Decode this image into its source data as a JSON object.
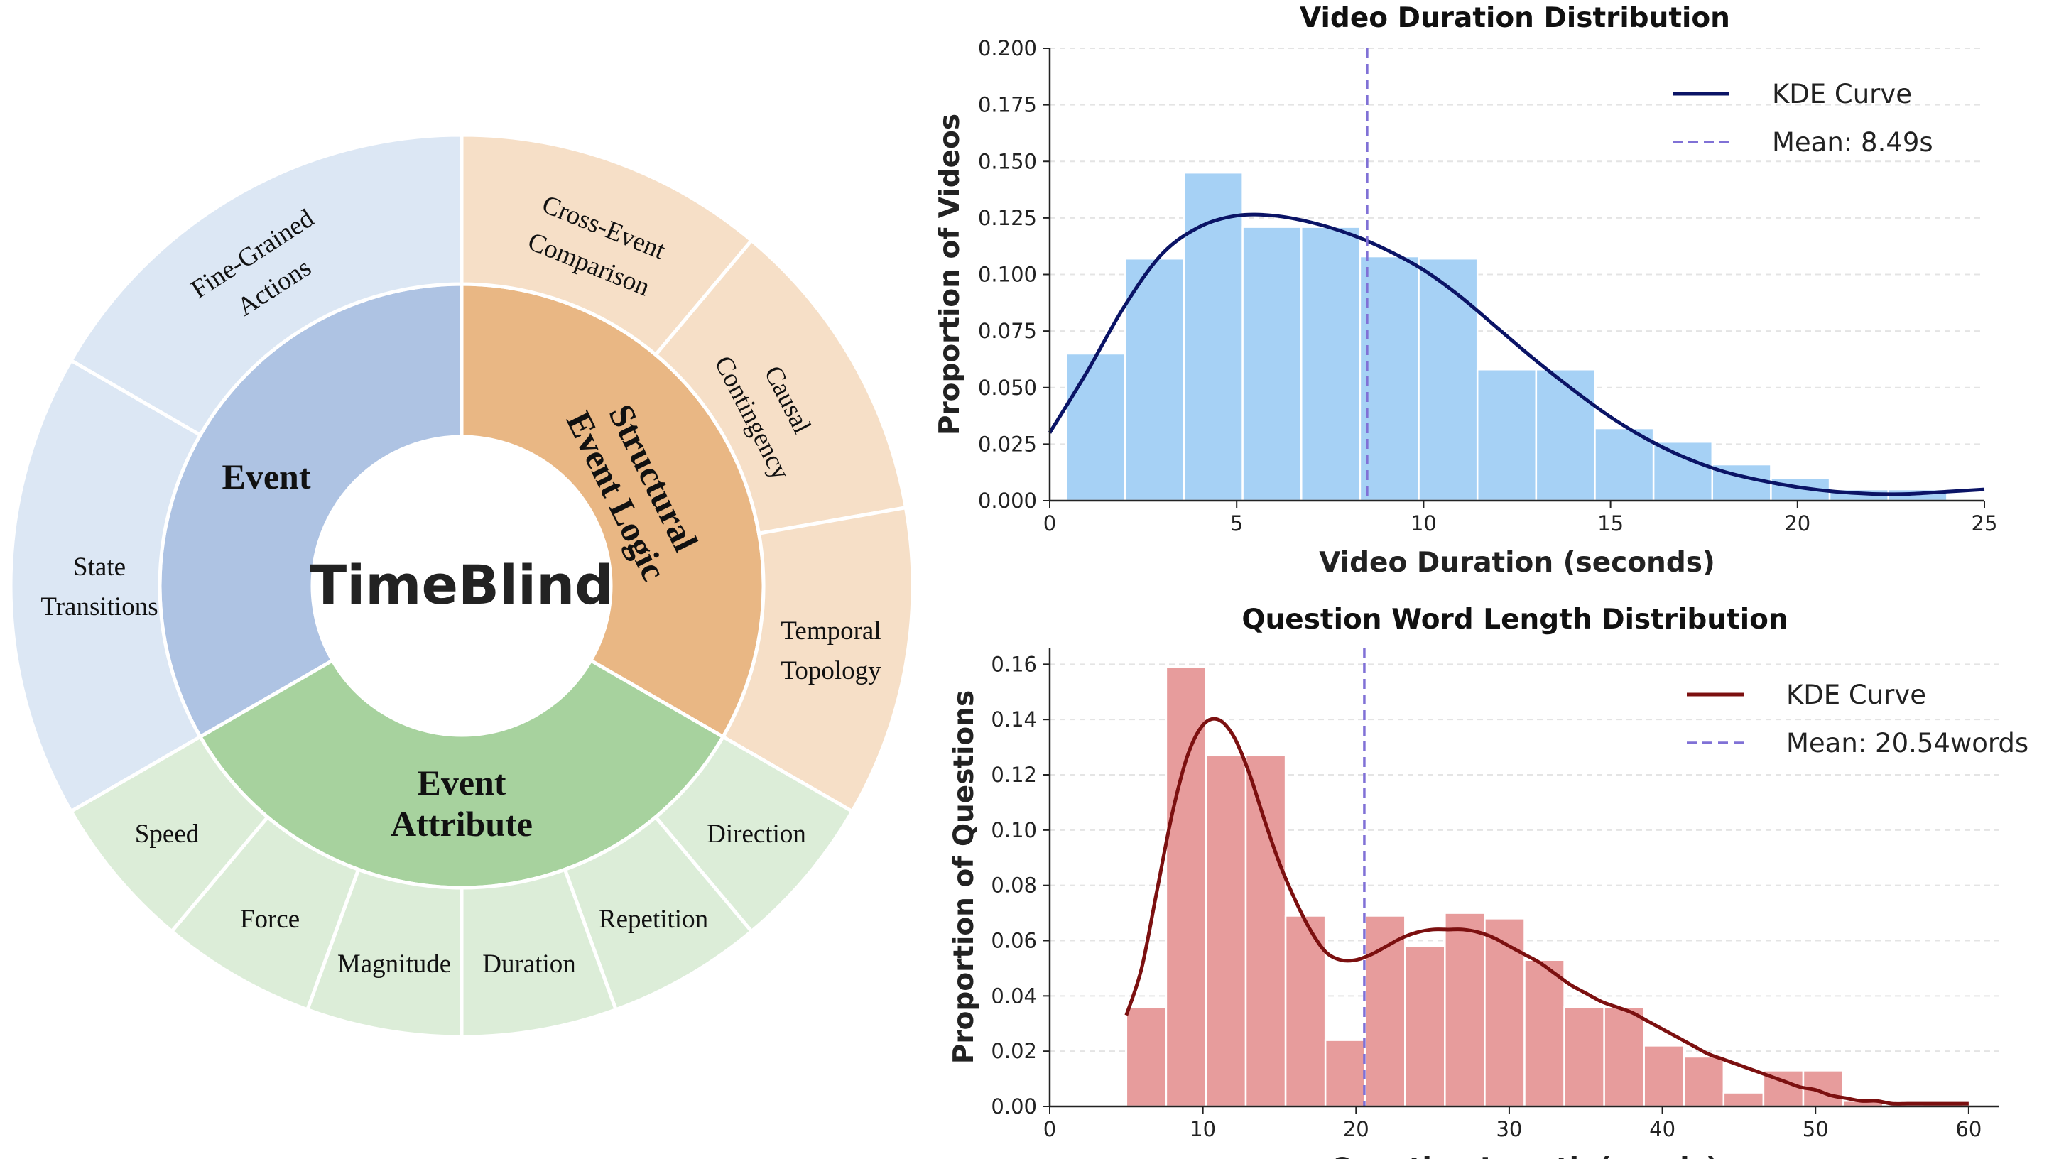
{
  "sunburst": {
    "center_label": "TimeBlind",
    "categories": [
      {
        "name": "Event",
        "color": "#aec3e3",
        "light_color": "#dce7f4",
        "subcategories": [
          {
            "lines": [
              "State",
              "Transitions"
            ]
          },
          {
            "lines": [
              "Fine-Grained",
              "Actions"
            ]
          }
        ]
      },
      {
        "name": "Structural Event Logic",
        "lines": [
          "Structural",
          "Event Logic"
        ],
        "color": "#e9b784",
        "light_color": "#f6dfc7",
        "subcategories": [
          {
            "lines": [
              "Cross-Event",
              "Comparison"
            ]
          },
          {
            "lines": [
              "Causal",
              "Contingency"
            ]
          },
          {
            "lines": [
              "Temporal",
              "Topology"
            ]
          }
        ]
      },
      {
        "name": "Event Attribute",
        "lines": [
          "Event",
          "Attribute"
        ],
        "color": "#a7d29e",
        "light_color": "#dcedd8",
        "subcategories": [
          {
            "lines": [
              "Direction"
            ]
          },
          {
            "lines": [
              "Repetition"
            ]
          },
          {
            "lines": [
              "Duration"
            ]
          },
          {
            "lines": [
              "Magnitude"
            ]
          },
          {
            "lines": [
              "Force"
            ]
          },
          {
            "lines": [
              "Speed"
            ]
          }
        ]
      }
    ]
  },
  "chart_data": [
    {
      "type": "bar",
      "title": "Video Duration Distribution",
      "xlabel": "Video Duration (seconds)",
      "ylabel": "Proportion of Videos",
      "xlim": [
        0,
        25
      ],
      "ylim": [
        0,
        0.2
      ],
      "xticks": [
        0,
        5,
        10,
        15,
        20,
        25
      ],
      "xtick_labels": [
        "0",
        "5",
        "10",
        "15",
        "20",
        "25"
      ],
      "yticks": [
        0,
        0.025,
        0.05,
        0.075,
        0.1,
        0.125,
        0.15,
        0.175,
        0.2
      ],
      "ytick_labels": [
        "0.000",
        "0.025",
        "0.050",
        "0.075",
        "0.100",
        "0.125",
        "0.150",
        "0.175",
        "0.200"
      ],
      "bar_color": "#a6d1f5",
      "kde_color": "#0b1466",
      "mean_color": "#8071d6",
      "bins": [
        {
          "x0": 0.45,
          "x1": 2.02,
          "value": 0.065
        },
        {
          "x0": 2.02,
          "x1": 3.59,
          "value": 0.107
        },
        {
          "x0": 3.59,
          "x1": 5.16,
          "value": 0.145
        },
        {
          "x0": 5.16,
          "x1": 6.73,
          "value": 0.121
        },
        {
          "x0": 6.73,
          "x1": 8.3,
          "value": 0.121
        },
        {
          "x0": 8.3,
          "x1": 9.87,
          "value": 0.108
        },
        {
          "x0": 9.87,
          "x1": 11.44,
          "value": 0.107
        },
        {
          "x0": 11.44,
          "x1": 13.01,
          "value": 0.058
        },
        {
          "x0": 13.01,
          "x1": 14.58,
          "value": 0.058
        },
        {
          "x0": 14.58,
          "x1": 16.15,
          "value": 0.032
        },
        {
          "x0": 16.15,
          "x1": 17.72,
          "value": 0.026
        },
        {
          "x0": 17.72,
          "x1": 19.29,
          "value": 0.016
        },
        {
          "x0": 19.29,
          "x1": 20.86,
          "value": 0.01
        },
        {
          "x0": 20.86,
          "x1": 22.43,
          "value": 0.005
        },
        {
          "x0": 22.43,
          "x1": 24.0,
          "value": 0.005
        }
      ],
      "kde": {
        "x": [
          0,
          1,
          2,
          3,
          4,
          5,
          6,
          7,
          8,
          9,
          10,
          11,
          12,
          13,
          14,
          15,
          16,
          17,
          18,
          19,
          20,
          21,
          22,
          23,
          24,
          25
        ],
        "y": [
          0.03,
          0.057,
          0.086,
          0.109,
          0.121,
          0.126,
          0.126,
          0.123,
          0.118,
          0.111,
          0.102,
          0.09,
          0.076,
          0.062,
          0.049,
          0.037,
          0.027,
          0.019,
          0.013,
          0.009,
          0.006,
          0.004,
          0.003,
          0.003,
          0.004,
          0.005
        ]
      },
      "mean": 8.49,
      "legend": {
        "position": "top-right",
        "kde_label": "KDE Curve",
        "mean_label": "Mean: 8.49s"
      }
    },
    {
      "type": "bar",
      "title": "Question Word Length Distribution",
      "xlabel": "Question Length (words)",
      "ylabel": "Proportion of Questions",
      "xlim": [
        0,
        62
      ],
      "ylim": [
        0,
        0.166
      ],
      "xticks": [
        0,
        10,
        20,
        30,
        40,
        50,
        60
      ],
      "xtick_labels": [
        "0",
        "10",
        "20",
        "30",
        "40",
        "50",
        "60"
      ],
      "yticks": [
        0,
        0.02,
        0.04,
        0.06,
        0.08,
        0.1,
        0.12,
        0.14,
        0.16
      ],
      "ytick_labels": [
        "0.00",
        "0.02",
        "0.04",
        "0.06",
        "0.08",
        "0.10",
        "0.12",
        "0.14",
        "0.16"
      ],
      "bar_color": "#e79c9c",
      "kde_color": "#7c1010",
      "mean_color": "#8071d6",
      "bins": [
        {
          "x0": 5.0,
          "x1": 7.6,
          "value": 0.036
        },
        {
          "x0": 7.6,
          "x1": 10.2,
          "value": 0.159
        },
        {
          "x0": 10.2,
          "x1": 12.8,
          "value": 0.127
        },
        {
          "x0": 12.8,
          "x1": 15.4,
          "value": 0.127
        },
        {
          "x0": 15.4,
          "x1": 18.0,
          "value": 0.069
        },
        {
          "x0": 18.0,
          "x1": 20.6,
          "value": 0.024
        },
        {
          "x0": 20.6,
          "x1": 23.2,
          "value": 0.069
        },
        {
          "x0": 23.2,
          "x1": 25.8,
          "value": 0.058
        },
        {
          "x0": 25.8,
          "x1": 28.4,
          "value": 0.07
        },
        {
          "x0": 28.4,
          "x1": 31.0,
          "value": 0.068
        },
        {
          "x0": 31.0,
          "x1": 33.6,
          "value": 0.053
        },
        {
          "x0": 33.6,
          "x1": 36.2,
          "value": 0.036
        },
        {
          "x0": 36.2,
          "x1": 38.8,
          "value": 0.036
        },
        {
          "x0": 38.8,
          "x1": 41.4,
          "value": 0.022
        },
        {
          "x0": 41.4,
          "x1": 44.0,
          "value": 0.018
        },
        {
          "x0": 44.0,
          "x1": 46.6,
          "value": 0.005
        },
        {
          "x0": 46.6,
          "x1": 49.2,
          "value": 0.013
        },
        {
          "x0": 49.2,
          "x1": 51.8,
          "value": 0.013
        },
        {
          "x0": 51.8,
          "x1": 54.4,
          "value": 0.002
        },
        {
          "x0": 54.4,
          "x1": 57.0,
          "value": 0.0
        },
        {
          "x0": 57.0,
          "x1": 59.6,
          "value": 0.001
        }
      ],
      "kde": {
        "x": [
          5,
          6,
          7,
          8,
          9,
          10,
          11,
          12,
          13,
          14,
          15,
          16,
          17,
          18,
          19,
          20,
          21,
          22,
          23,
          24,
          25,
          26,
          27,
          28,
          29,
          30,
          31,
          32,
          33,
          34,
          35,
          36,
          37,
          38,
          39,
          40,
          41,
          42,
          43,
          44,
          45,
          46,
          47,
          48,
          49,
          50,
          51,
          52,
          53,
          54,
          55,
          56,
          57,
          58,
          59,
          60
        ],
        "y": [
          0.033,
          0.05,
          0.078,
          0.106,
          0.127,
          0.138,
          0.14,
          0.134,
          0.121,
          0.104,
          0.088,
          0.075,
          0.064,
          0.056,
          0.053,
          0.053,
          0.055,
          0.058,
          0.061,
          0.063,
          0.064,
          0.064,
          0.064,
          0.063,
          0.061,
          0.058,
          0.055,
          0.052,
          0.048,
          0.044,
          0.041,
          0.038,
          0.036,
          0.034,
          0.031,
          0.028,
          0.025,
          0.022,
          0.019,
          0.017,
          0.015,
          0.013,
          0.011,
          0.009,
          0.007,
          0.006,
          0.004,
          0.003,
          0.002,
          0.002,
          0.001,
          0.001,
          0.001,
          0.001,
          0.001,
          0.001
        ]
      },
      "mean": 20.54,
      "legend": {
        "position": "top-right",
        "kde_label": "KDE Curve",
        "mean_label": "Mean: 20.54words"
      }
    }
  ]
}
